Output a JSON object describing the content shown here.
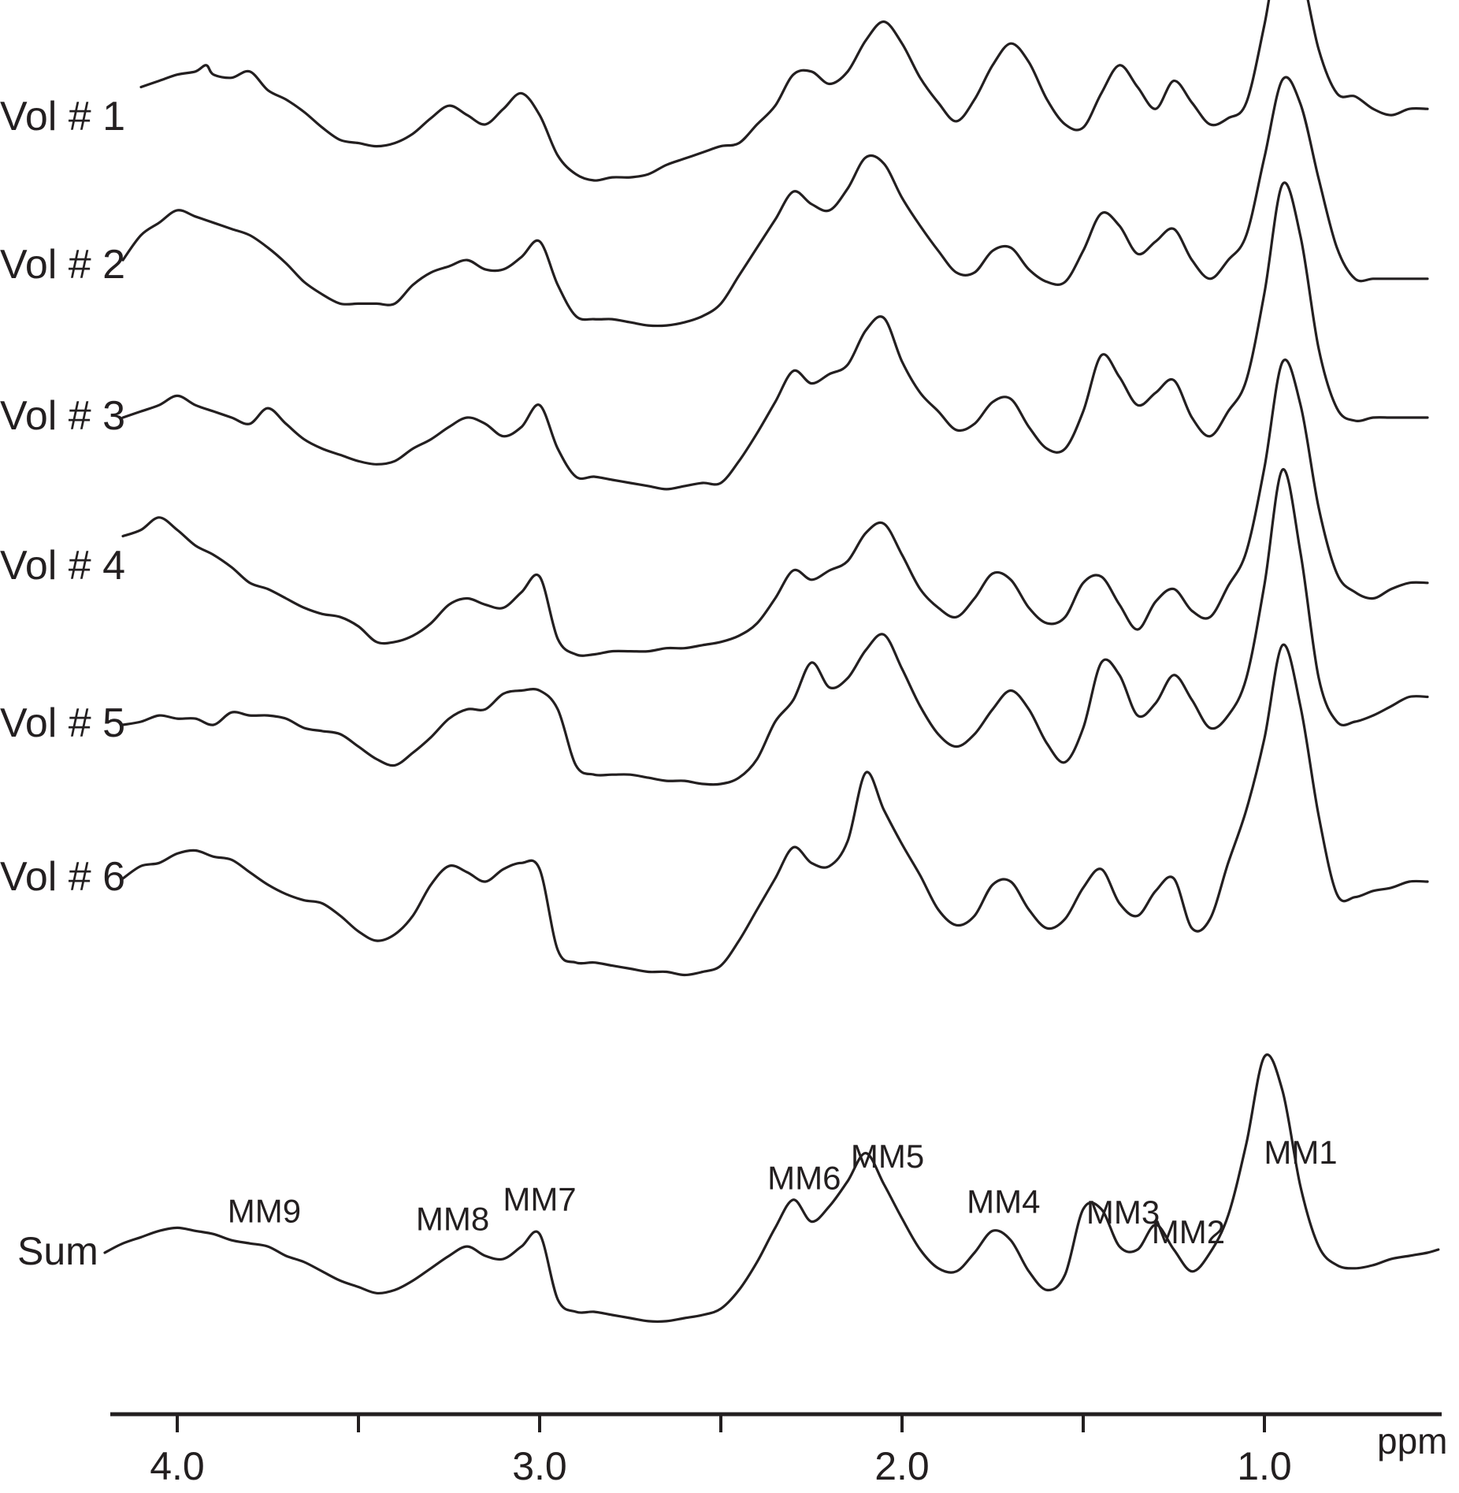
{
  "chart_data": {
    "type": "line",
    "x_unit": "ppm",
    "x_reversed": true,
    "xlim": [
      4.18,
      0.52
    ],
    "x_ticks": [
      4.0,
      3.5,
      3.0,
      2.5,
      2.0,
      1.5,
      1.0
    ],
    "x_tick_labels": [
      "4.0",
      "",
      "3.0",
      "",
      "2.0",
      "",
      "1.0"
    ],
    "xlabel": "ppm",
    "ylabel": "",
    "y_axis_visible": false,
    "grid": false,
    "legend": "none",
    "layout": "stacked traces, top to bottom",
    "line_color": "#231f20",
    "series": [
      {
        "name": "Vol # 1",
        "x": [
          4.1,
          4.05,
          4.0,
          3.95,
          3.92,
          3.9,
          3.85,
          3.8,
          3.75,
          3.7,
          3.65,
          3.6,
          3.55,
          3.5,
          3.45,
          3.4,
          3.35,
          3.3,
          3.25,
          3.2,
          3.15,
          3.1,
          3.05,
          3.0,
          2.95,
          2.9,
          2.85,
          2.8,
          2.75,
          2.7,
          2.65,
          2.6,
          2.55,
          2.5,
          2.45,
          2.4,
          2.35,
          2.3,
          2.25,
          2.2,
          2.15,
          2.1,
          2.05,
          2.0,
          1.95,
          1.9,
          1.85,
          1.8,
          1.75,
          1.7,
          1.65,
          1.6,
          1.55,
          1.5,
          1.45,
          1.4,
          1.35,
          1.3,
          1.25,
          1.2,
          1.15,
          1.1,
          1.05,
          1.0,
          0.95,
          0.9,
          0.85,
          0.8,
          0.75,
          0.7,
          0.65,
          0.6,
          0.55
        ],
        "y": [
          0.1,
          0.12,
          0.14,
          0.15,
          0.17,
          0.14,
          0.13,
          0.15,
          0.09,
          0.06,
          0.02,
          -0.03,
          -0.07,
          -0.08,
          -0.09,
          -0.08,
          -0.05,
          0.0,
          0.04,
          0.01,
          -0.02,
          0.03,
          0.08,
          0.01,
          -0.12,
          -0.18,
          -0.2,
          -0.19,
          -0.19,
          -0.18,
          -0.15,
          -0.13,
          -0.11,
          -0.09,
          -0.08,
          -0.02,
          0.04,
          0.14,
          0.15,
          0.11,
          0.15,
          0.25,
          0.31,
          0.24,
          0.13,
          0.05,
          -0.01,
          0.06,
          0.17,
          0.24,
          0.18,
          0.06,
          -0.02,
          -0.03,
          0.08,
          0.17,
          0.1,
          0.03,
          0.12,
          0.05,
          -0.02,
          0.0,
          0.05,
          0.3,
          0.6,
          0.48,
          0.22,
          0.08,
          0.07,
          0.03,
          0.01,
          0.03,
          0.03
        ]
      },
      {
        "name": "Vol # 2",
        "x": [
          4.15,
          4.1,
          4.05,
          4.0,
          3.95,
          3.9,
          3.85,
          3.8,
          3.75,
          3.7,
          3.65,
          3.6,
          3.55,
          3.5,
          3.45,
          3.4,
          3.35,
          3.3,
          3.25,
          3.2,
          3.15,
          3.1,
          3.05,
          3.0,
          2.95,
          2.9,
          2.85,
          2.8,
          2.75,
          2.7,
          2.65,
          2.6,
          2.55,
          2.5,
          2.45,
          2.4,
          2.35,
          2.3,
          2.25,
          2.2,
          2.15,
          2.1,
          2.05,
          2.0,
          1.95,
          1.9,
          1.85,
          1.8,
          1.75,
          1.7,
          1.65,
          1.6,
          1.55,
          1.5,
          1.45,
          1.4,
          1.35,
          1.3,
          1.25,
          1.2,
          1.15,
          1.1,
          1.05,
          1.0,
          0.95,
          0.9,
          0.85,
          0.8,
          0.75,
          0.7,
          0.65,
          0.6,
          0.55
        ],
        "y": [
          0.02,
          0.1,
          0.14,
          0.18,
          0.16,
          0.14,
          0.12,
          0.1,
          0.06,
          0.01,
          -0.05,
          -0.09,
          -0.12,
          -0.12,
          -0.12,
          -0.12,
          -0.06,
          -0.02,
          0.0,
          0.02,
          -0.01,
          -0.01,
          0.03,
          0.08,
          -0.06,
          -0.16,
          -0.17,
          -0.17,
          -0.18,
          -0.19,
          -0.19,
          -0.18,
          -0.16,
          -0.12,
          -0.03,
          0.06,
          0.15,
          0.24,
          0.2,
          0.18,
          0.25,
          0.35,
          0.33,
          0.22,
          0.13,
          0.05,
          -0.02,
          -0.02,
          0.05,
          0.06,
          -0.01,
          -0.05,
          -0.05,
          0.05,
          0.17,
          0.13,
          0.04,
          0.08,
          0.12,
          0.02,
          -0.04,
          0.02,
          0.1,
          0.35,
          0.6,
          0.52,
          0.28,
          0.06,
          -0.04,
          -0.04,
          -0.04,
          -0.04,
          -0.04
        ]
      },
      {
        "name": "Vol # 3",
        "x": [
          4.15,
          4.1,
          4.05,
          4.0,
          3.95,
          3.9,
          3.85,
          3.8,
          3.75,
          3.7,
          3.65,
          3.6,
          3.55,
          3.5,
          3.45,
          3.4,
          3.35,
          3.3,
          3.25,
          3.2,
          3.15,
          3.1,
          3.05,
          3.0,
          2.95,
          2.9,
          2.85,
          2.8,
          2.75,
          2.7,
          2.65,
          2.6,
          2.55,
          2.5,
          2.45,
          2.4,
          2.35,
          2.3,
          2.25,
          2.2,
          2.15,
          2.1,
          2.05,
          2.0,
          1.95,
          1.9,
          1.85,
          1.8,
          1.75,
          1.7,
          1.65,
          1.6,
          1.55,
          1.5,
          1.45,
          1.4,
          1.35,
          1.3,
          1.25,
          1.2,
          1.15,
          1.1,
          1.05,
          1.0,
          0.95,
          0.9,
          0.85,
          0.8,
          0.75,
          0.7,
          0.65,
          0.6,
          0.55
        ],
        "y": [
          0.0,
          0.02,
          0.04,
          0.07,
          0.04,
          0.02,
          0.0,
          -0.02,
          0.03,
          -0.02,
          -0.07,
          -0.1,
          -0.12,
          -0.14,
          -0.15,
          -0.14,
          -0.1,
          -0.07,
          -0.03,
          0.0,
          -0.02,
          -0.06,
          -0.03,
          0.04,
          -0.1,
          -0.19,
          -0.19,
          -0.2,
          -0.21,
          -0.22,
          -0.23,
          -0.22,
          -0.21,
          -0.21,
          -0.14,
          -0.05,
          0.05,
          0.15,
          0.11,
          0.14,
          0.17,
          0.28,
          0.32,
          0.18,
          0.08,
          0.02,
          -0.04,
          -0.02,
          0.05,
          0.06,
          -0.03,
          -0.1,
          -0.1,
          0.02,
          0.2,
          0.13,
          0.04,
          0.08,
          0.12,
          0.0,
          -0.06,
          0.02,
          0.12,
          0.4,
          0.75,
          0.58,
          0.22,
          0.03,
          -0.01,
          0.0,
          0.0,
          0.0,
          0.0
        ]
      },
      {
        "name": "Vol # 4",
        "x": [
          4.15,
          4.1,
          4.05,
          4.0,
          3.95,
          3.9,
          3.85,
          3.8,
          3.75,
          3.7,
          3.65,
          3.6,
          3.55,
          3.5,
          3.45,
          3.4,
          3.35,
          3.3,
          3.25,
          3.2,
          3.15,
          3.1,
          3.05,
          3.0,
          2.95,
          2.9,
          2.85,
          2.8,
          2.75,
          2.7,
          2.65,
          2.6,
          2.55,
          2.5,
          2.45,
          2.4,
          2.35,
          2.3,
          2.25,
          2.2,
          2.15,
          2.1,
          2.05,
          2.0,
          1.95,
          1.9,
          1.85,
          1.8,
          1.75,
          1.7,
          1.65,
          1.6,
          1.55,
          1.5,
          1.45,
          1.4,
          1.35,
          1.3,
          1.25,
          1.2,
          1.15,
          1.1,
          1.05,
          1.0,
          0.95,
          0.9,
          0.85,
          0.8,
          0.75,
          0.7,
          0.65,
          0.6,
          0.55
        ],
        "y": [
          0.1,
          0.12,
          0.16,
          0.12,
          0.07,
          0.04,
          0.0,
          -0.05,
          -0.07,
          -0.1,
          -0.13,
          -0.15,
          -0.16,
          -0.19,
          -0.24,
          -0.24,
          -0.22,
          -0.18,
          -0.12,
          -0.1,
          -0.12,
          -0.13,
          -0.08,
          -0.03,
          -0.23,
          -0.28,
          -0.28,
          -0.27,
          -0.27,
          -0.27,
          -0.26,
          -0.26,
          -0.25,
          -0.24,
          -0.22,
          -0.18,
          -0.1,
          -0.01,
          -0.04,
          -0.01,
          0.02,
          0.11,
          0.14,
          0.04,
          -0.07,
          -0.13,
          -0.16,
          -0.1,
          -0.02,
          -0.04,
          -0.13,
          -0.18,
          -0.16,
          -0.05,
          -0.03,
          -0.12,
          -0.2,
          -0.11,
          -0.07,
          -0.14,
          -0.16,
          -0.06,
          0.05,
          0.32,
          0.66,
          0.52,
          0.19,
          -0.02,
          -0.08,
          -0.1,
          -0.07,
          -0.05,
          -0.05
        ]
      },
      {
        "name": "Vol # 5",
        "x": [
          4.15,
          4.1,
          4.05,
          4.0,
          3.95,
          3.9,
          3.85,
          3.8,
          3.75,
          3.7,
          3.65,
          3.6,
          3.55,
          3.5,
          3.45,
          3.4,
          3.35,
          3.3,
          3.25,
          3.2,
          3.15,
          3.1,
          3.05,
          3.0,
          2.95,
          2.9,
          2.85,
          2.8,
          2.75,
          2.7,
          2.65,
          2.6,
          2.55,
          2.5,
          2.45,
          2.4,
          2.35,
          2.3,
          2.25,
          2.2,
          2.15,
          2.1,
          2.05,
          2.0,
          1.95,
          1.9,
          1.85,
          1.8,
          1.75,
          1.7,
          1.65,
          1.6,
          1.55,
          1.5,
          1.45,
          1.4,
          1.35,
          1.3,
          1.25,
          1.2,
          1.15,
          1.1,
          1.05,
          1.0,
          0.95,
          0.9,
          0.85,
          0.8,
          0.75,
          0.7,
          0.65,
          0.6,
          0.55
        ],
        "y": [
          0.0,
          0.01,
          0.03,
          0.02,
          0.02,
          0.0,
          0.04,
          0.03,
          0.03,
          0.02,
          -0.01,
          -0.02,
          -0.03,
          -0.07,
          -0.11,
          -0.13,
          -0.09,
          -0.04,
          0.02,
          0.05,
          0.05,
          0.1,
          0.11,
          0.11,
          0.05,
          -0.13,
          -0.16,
          -0.16,
          -0.16,
          -0.17,
          -0.18,
          -0.18,
          -0.19,
          -0.19,
          -0.17,
          -0.11,
          0.01,
          0.08,
          0.2,
          0.12,
          0.15,
          0.24,
          0.29,
          0.18,
          0.06,
          -0.03,
          -0.07,
          -0.03,
          0.05,
          0.11,
          0.05,
          -0.06,
          -0.12,
          -0.01,
          0.2,
          0.16,
          0.03,
          0.07,
          0.16,
          0.08,
          -0.01,
          0.03,
          0.15,
          0.45,
          0.82,
          0.55,
          0.15,
          0.01,
          0.01,
          0.03,
          0.06,
          0.09,
          0.09
        ]
      },
      {
        "name": "Vol # 6",
        "x": [
          4.15,
          4.1,
          4.05,
          4.0,
          3.95,
          3.9,
          3.85,
          3.8,
          3.75,
          3.7,
          3.65,
          3.6,
          3.55,
          3.5,
          3.45,
          3.4,
          3.35,
          3.3,
          3.25,
          3.2,
          3.15,
          3.1,
          3.05,
          3.0,
          2.95,
          2.9,
          2.85,
          2.8,
          2.75,
          2.7,
          2.65,
          2.6,
          2.55,
          2.5,
          2.45,
          2.4,
          2.35,
          2.3,
          2.25,
          2.2,
          2.15,
          2.1,
          2.05,
          2.0,
          1.95,
          1.9,
          1.85,
          1.8,
          1.75,
          1.7,
          1.65,
          1.6,
          1.55,
          1.5,
          1.45,
          1.4,
          1.35,
          1.3,
          1.25,
          1.2,
          1.15,
          1.1,
          1.05,
          1.0,
          0.95,
          0.9,
          0.85,
          0.8,
          0.75,
          0.7,
          0.65,
          0.6,
          0.55
        ],
        "y": [
          0.0,
          0.04,
          0.05,
          0.08,
          0.09,
          0.07,
          0.06,
          0.02,
          -0.02,
          -0.05,
          -0.07,
          -0.08,
          -0.12,
          -0.17,
          -0.2,
          -0.18,
          -0.12,
          -0.02,
          0.04,
          0.02,
          -0.01,
          0.03,
          0.05,
          0.03,
          -0.23,
          -0.27,
          -0.27,
          -0.28,
          -0.29,
          -0.3,
          -0.3,
          -0.31,
          -0.3,
          -0.28,
          -0.2,
          -0.1,
          0.0,
          0.1,
          0.05,
          0.04,
          0.12,
          0.34,
          0.22,
          0.11,
          0.01,
          -0.1,
          -0.15,
          -0.12,
          -0.02,
          -0.01,
          -0.1,
          -0.16,
          -0.13,
          -0.03,
          0.03,
          -0.08,
          -0.12,
          -0.04,
          0.0,
          -0.16,
          -0.13,
          0.05,
          0.22,
          0.45,
          0.75,
          0.55,
          0.2,
          -0.05,
          -0.06,
          -0.04,
          -0.03,
          -0.01,
          -0.01
        ]
      },
      {
        "name": "Sum",
        "x": [
          4.2,
          4.15,
          4.1,
          4.05,
          4.0,
          3.95,
          3.9,
          3.85,
          3.8,
          3.75,
          3.7,
          3.65,
          3.6,
          3.55,
          3.5,
          3.45,
          3.4,
          3.35,
          3.3,
          3.25,
          3.2,
          3.15,
          3.1,
          3.05,
          3.0,
          2.95,
          2.9,
          2.85,
          2.8,
          2.75,
          2.7,
          2.65,
          2.6,
          2.55,
          2.5,
          2.45,
          2.4,
          2.35,
          2.3,
          2.25,
          2.2,
          2.15,
          2.1,
          2.05,
          2.0,
          1.95,
          1.9,
          1.85,
          1.8,
          1.75,
          1.7,
          1.65,
          1.6,
          1.55,
          1.5,
          1.45,
          1.4,
          1.35,
          1.3,
          1.25,
          1.2,
          1.15,
          1.1,
          1.05,
          1.0,
          0.95,
          0.9,
          0.85,
          0.8,
          0.75,
          0.7,
          0.65,
          0.6,
          0.55,
          0.52
        ],
        "y": [
          0.0,
          0.03,
          0.05,
          0.07,
          0.08,
          0.07,
          0.06,
          0.04,
          0.03,
          0.02,
          -0.01,
          -0.03,
          -0.06,
          -0.09,
          -0.11,
          -0.13,
          -0.12,
          -0.09,
          -0.05,
          -0.01,
          0.02,
          -0.01,
          -0.02,
          0.02,
          0.06,
          -0.15,
          -0.19,
          -0.19,
          -0.2,
          -0.21,
          -0.22,
          -0.22,
          -0.21,
          -0.2,
          -0.18,
          -0.12,
          -0.03,
          0.08,
          0.17,
          0.1,
          0.15,
          0.23,
          0.32,
          0.22,
          0.11,
          0.01,
          -0.05,
          -0.06,
          0.0,
          0.07,
          0.04,
          -0.06,
          -0.12,
          -0.07,
          0.14,
          0.14,
          0.02,
          0.01,
          0.09,
          0.01,
          -0.06,
          0.0,
          0.12,
          0.35,
          0.63,
          0.52,
          0.21,
          0.02,
          -0.04,
          -0.05,
          -0.04,
          -0.02,
          -0.01,
          0.0,
          0.01
        ]
      }
    ],
    "annotations": [
      {
        "label": "MM1",
        "x": 0.9
      },
      {
        "label": "MM2",
        "x": 1.21
      },
      {
        "label": "MM3",
        "x": 1.39
      },
      {
        "label": "MM4",
        "x": 1.72
      },
      {
        "label": "MM5",
        "x": 2.04
      },
      {
        "label": "MM6",
        "x": 2.27
      },
      {
        "label": "MM7",
        "x": 3.0
      },
      {
        "label": "MM8",
        "x": 3.24
      },
      {
        "label": "MM9",
        "x": 3.76
      }
    ]
  }
}
